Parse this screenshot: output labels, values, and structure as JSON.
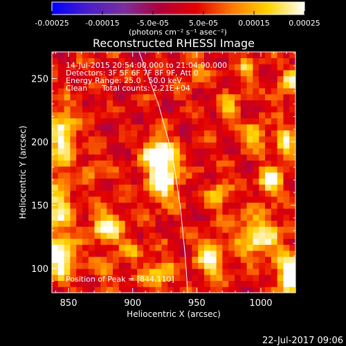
{
  "chart_data": {
    "type": "heatmap",
    "title": "Reconstructed RHESSI Image",
    "xlabel": "Heliocentric X (arcsec)",
    "ylabel": "Heliocentric Y (arcsec)",
    "xlim": [
      837,
      1027
    ],
    "ylim": [
      81,
      271
    ],
    "x_ticks": [
      850,
      900,
      950,
      1000
    ],
    "y_ticks": [
      100,
      150,
      200,
      250
    ],
    "colorbar": {
      "range": [
        -0.00025,
        0.00025
      ],
      "tick_values": [
        -0.00025,
        -0.00015,
        -5e-05,
        5e-05,
        0.00015,
        0.00025
      ],
      "tick_labels": [
        "-0.00025",
        "-0.00015",
        "-5.0e-05",
        "5.0e-05",
        "0.00015",
        "0.00025"
      ],
      "unit_label": "(photons cm⁻² s⁻¹ asec⁻²)",
      "colors": [
        "#0000ff",
        "#4a1ec8",
        "#7a2f9c",
        "#b1003a",
        "#e30000",
        "#ff7a00",
        "#ffd400",
        "#ffffff"
      ]
    },
    "annotations": [
      "14-Jul-2015 20:54:00.000 to 21:04:00.000",
      "Detectors: 3F 5F 6F 7F 8F 9F, Att 0",
      "Energy Range: 25.0 - 50.0 keV",
      "Clean      Total counts: 2.21E+04"
    ],
    "peak_label": "Position of Peak = [844,110]",
    "peak_position": [
      844,
      110
    ],
    "limb_curve": [
      [
        905,
        271
      ],
      [
        920,
        230
      ],
      [
        931,
        190
      ],
      [
        937,
        150
      ],
      [
        941,
        110
      ],
      [
        943,
        81
      ]
    ],
    "grid": {
      "nx": 40,
      "ny": 40
    },
    "sources": [
      {
        "x": 924,
        "y": 175,
        "amp": 0.0003,
        "sx": 8,
        "sy": 14
      },
      {
        "x": 918,
        "y": 192,
        "amp": 0.0002,
        "sx": 7,
        "sy": 8
      },
      {
        "x": 845,
        "y": 205,
        "amp": 0.00022,
        "sx": 7,
        "sy": 16
      },
      {
        "x": 843,
        "y": 148,
        "amp": 0.00018,
        "sx": 7,
        "sy": 16
      },
      {
        "x": 844,
        "y": 108,
        "amp": 0.00026,
        "sx": 8,
        "sy": 10
      },
      {
        "x": 880,
        "y": 133,
        "amp": 0.00022,
        "sx": 9,
        "sy": 9
      },
      {
        "x": 920,
        "y": 95,
        "amp": 0.00016,
        "sx": 8,
        "sy": 8
      },
      {
        "x": 976,
        "y": 227,
        "amp": 0.00012,
        "sx": 5,
        "sy": 10
      },
      {
        "x": 995,
        "y": 205,
        "amp": 0.00018,
        "sx": 6,
        "sy": 7
      },
      {
        "x": 1020,
        "y": 200,
        "amp": 0.00016,
        "sx": 5,
        "sy": 11
      },
      {
        "x": 1008,
        "y": 170,
        "amp": 0.00025,
        "sx": 6,
        "sy": 8
      },
      {
        "x": 968,
        "y": 160,
        "amp": 0.00014,
        "sx": 6,
        "sy": 8
      },
      {
        "x": 998,
        "y": 125,
        "amp": 0.0002,
        "sx": 12,
        "sy": 12
      },
      {
        "x": 960,
        "y": 108,
        "amp": 0.0002,
        "sx": 7,
        "sy": 11
      },
      {
        "x": 1022,
        "y": 95,
        "amp": 0.0003,
        "sx": 6,
        "sy": 11
      },
      {
        "x": 1025,
        "y": 250,
        "amp": 0.00018,
        "sx": 5,
        "sy": 7
      },
      {
        "x": 990,
        "y": 258,
        "amp": 0.00014,
        "sx": 5,
        "sy": 7
      },
      {
        "x": 1012,
        "y": 235,
        "amp": 0.00014,
        "sx": 4,
        "sy": 5
      },
      {
        "x": 950,
        "y": 255,
        "amp": 0.0001,
        "sx": 6,
        "sy": 6
      },
      {
        "x": 868,
        "y": 178,
        "amp": 0.0001,
        "sx": 6,
        "sy": 6
      },
      {
        "x": 900,
        "y": 115,
        "amp": 0.0001,
        "sx": 6,
        "sy": 6
      },
      {
        "x": 880,
        "y": 100,
        "amp": 0.00012,
        "sx": 5,
        "sy": 5
      }
    ],
    "background": {
      "offset": 3e-05,
      "noise_amp": 5e-05
    }
  },
  "footer": {
    "date": "22-Jul-2017 09:06"
  }
}
